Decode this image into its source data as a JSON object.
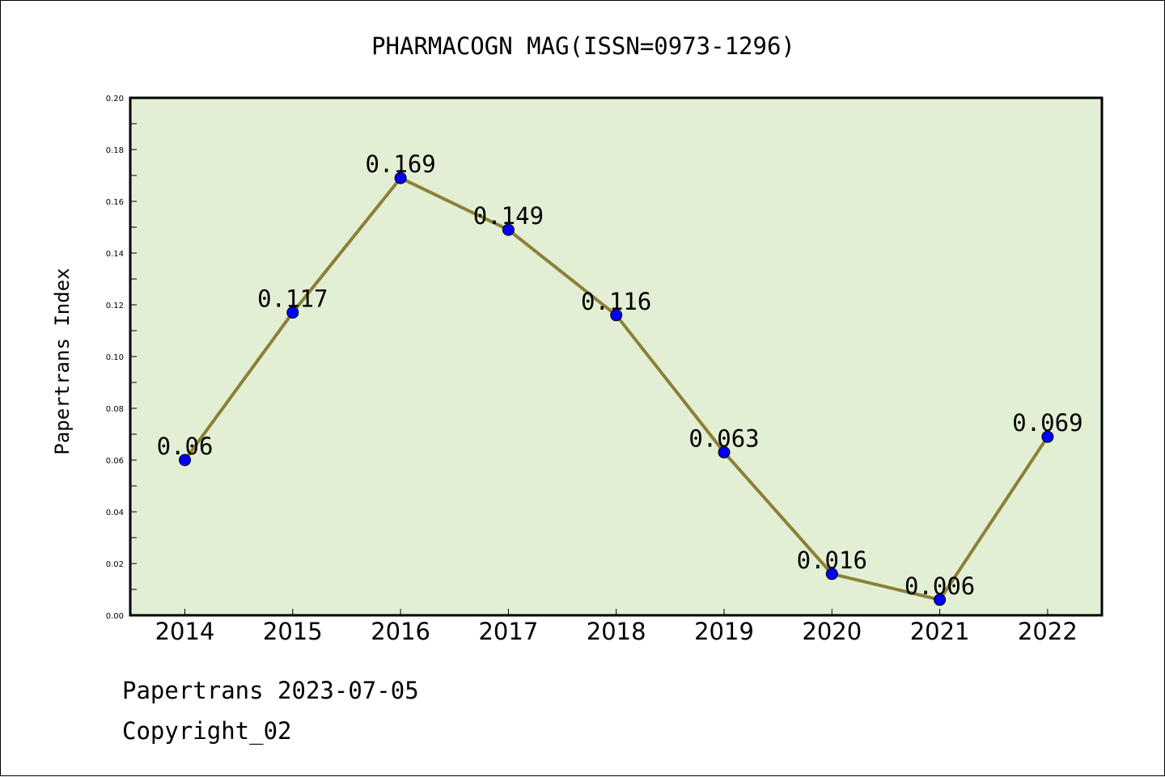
{
  "chart_data": {
    "type": "line",
    "title": "PHARMACOGN MAG(ISSN=0973-1296)",
    "xlabel": "",
    "ylabel": "Papertrans Index",
    "categories": [
      "2014",
      "2015",
      "2016",
      "2017",
      "2018",
      "2019",
      "2020",
      "2021",
      "2022"
    ],
    "values": [
      0.06,
      0.117,
      0.169,
      0.149,
      0.116,
      0.063,
      0.016,
      0.006,
      0.069
    ],
    "data_labels": [
      "0.06",
      "0.117",
      "0.169",
      "0.149",
      "0.116",
      "0.063",
      "0.016",
      "0.006",
      "0.069"
    ],
    "ylim": [
      0,
      0.2
    ],
    "y_ticks": [
      "0.00",
      "0.02",
      "0.04",
      "0.06",
      "0.08",
      "0.10",
      "0.12",
      "0.14",
      "0.16",
      "0.18",
      "0.20"
    ],
    "grid": false,
    "legend": "none",
    "colors": {
      "plot_background": "#e2efd5",
      "line": "#8b8036",
      "marker": "#0000ff"
    }
  },
  "footer": {
    "line1": "Papertrans 2023-07-05",
    "line2": "Copyright_02"
  }
}
